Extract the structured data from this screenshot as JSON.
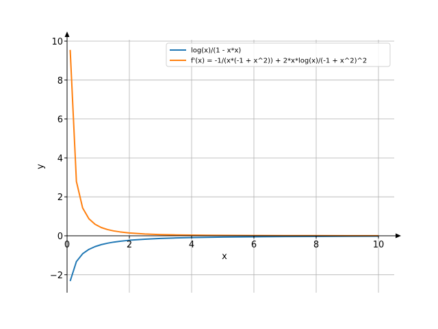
{
  "chart_data": {
    "type": "line",
    "title": "",
    "xlabel": "x",
    "ylabel": "y",
    "xlim": [
      0,
      10.5
    ],
    "ylim": [
      -2.9,
      10.3
    ],
    "x_ticks": [
      0,
      2,
      4,
      6,
      8,
      10
    ],
    "y_ticks": [
      -2,
      0,
      2,
      4,
      6,
      8,
      10
    ],
    "x_tick_labels": [
      "0",
      "2",
      "4",
      "6",
      "8",
      "10"
    ],
    "y_tick_labels": [
      "−2",
      "0",
      "2",
      "4",
      "6",
      "8",
      "10"
    ],
    "grid": true,
    "legend_position": "top-right",
    "series": [
      {
        "name": "log(x)/(1 - x*x)",
        "color": "#1f77b4",
        "x": [
          0.1,
          0.3,
          0.5,
          0.7,
          0.9,
          1.1,
          1.3,
          1.5,
          1.7,
          2.0,
          2.5,
          3.0,
          3.5,
          4.0,
          4.5,
          5.0,
          6.0,
          7.0,
          8.0,
          9.0,
          10.0
        ],
        "y": [
          -2.326,
          -1.323,
          -0.924,
          -0.699,
          -0.555,
          -0.454,
          -0.381,
          -0.324,
          -0.281,
          -0.231,
          -0.175,
          -0.137,
          -0.111,
          -0.092,
          -0.079,
          -0.067,
          -0.051,
          -0.041,
          -0.033,
          -0.028,
          -0.023
        ]
      },
      {
        "name": "f'(x) = -1/(x*(-1 + x^2)) + 2*x*log(x)/(-1 + x^2)^2",
        "color": "#ff7f0e",
        "x": [
          0.1,
          0.3,
          0.5,
          0.7,
          0.9,
          1.1,
          1.3,
          1.5,
          1.7,
          2.0,
          2.5,
          3.0,
          3.5,
          4.0,
          4.5,
          5.0,
          6.0,
          7.0,
          8.0,
          9.0,
          10.0
        ],
        "y": [
          9.55,
          2.79,
          1.43,
          0.877,
          0.589,
          0.423,
          0.319,
          0.249,
          0.2,
          0.146,
          0.0915,
          0.0622,
          0.0448,
          0.0337,
          0.0261,
          0.0208,
          0.0141,
          0.0101,
          0.0076,
          0.0059,
          0.0047
        ]
      }
    ]
  }
}
